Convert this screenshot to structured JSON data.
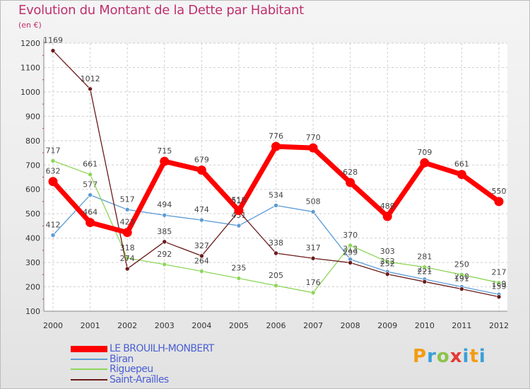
{
  "title": "Evolution du Montant de la Dette par Habitant",
  "unit": "(en €)",
  "logo_text": "Proxiti",
  "chart_data": {
    "type": "line",
    "title": "Evolution du Montant de la Dette par Habitant",
    "ylabel": "(en €)",
    "x": [
      "2000",
      "2001",
      "2002",
      "2003",
      "2004",
      "2005",
      "2006",
      "2007",
      "2008",
      "2009",
      "2010",
      "2011",
      "2012"
    ],
    "ylim": [
      100,
      1200
    ],
    "yticks": [
      100,
      200,
      300,
      400,
      500,
      600,
      700,
      800,
      900,
      1000,
      1100,
      1200
    ],
    "grid": true,
    "legend_position": "bottom-left",
    "series": [
      {
        "name": "LE BROUILH-MONBERT",
        "color": "#ff0000",
        "values": [
          632,
          464,
          423,
          715,
          679,
          513,
          776,
          770,
          628,
          489,
          709,
          661,
          550
        ]
      },
      {
        "name": "Biran",
        "color": "#5b9bd5",
        "values": [
          412,
          577,
          517,
          494,
          474,
          451,
          534,
          508,
          313,
          262,
          231,
          200,
          169
        ]
      },
      {
        "name": "Riguepeu",
        "color": "#8ed65a",
        "values": [
          717,
          661,
          318,
          292,
          264,
          235,
          205,
          176,
          370,
          303,
          281,
          250,
          217
        ]
      },
      {
        "name": "Saint-Araïlles",
        "color": "#6b1a1a",
        "values": [
          1169,
          1012,
          274,
          385,
          327,
          510,
          338,
          317,
          299,
          252,
          221,
          191,
          159
        ]
      }
    ]
  }
}
